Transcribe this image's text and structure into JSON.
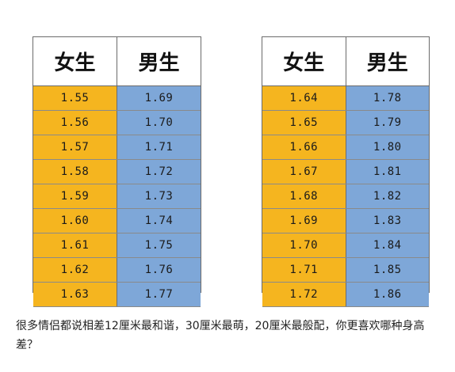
{
  "colors": {
    "female_column": "#f5b51f",
    "male_column": "#7ea7d8",
    "grid_lines": "#6b6b6b"
  },
  "left_table": {
    "headers": [
      "女生",
      "男生"
    ],
    "rows": [
      [
        "1.55",
        "1.69"
      ],
      [
        "1.56",
        "1.70"
      ],
      [
        "1.57",
        "1.71"
      ],
      [
        "1.58",
        "1.72"
      ],
      [
        "1.59",
        "1.73"
      ],
      [
        "1.60",
        "1.74"
      ],
      [
        "1.61",
        "1.75"
      ],
      [
        "1.62",
        "1.76"
      ],
      [
        "1.63",
        "1.77"
      ]
    ]
  },
  "right_table": {
    "headers": [
      "女生",
      "男生"
    ],
    "rows": [
      [
        "1.64",
        "1.78"
      ],
      [
        "1.65",
        "1.79"
      ],
      [
        "1.66",
        "1.80"
      ],
      [
        "1.67",
        "1.81"
      ],
      [
        "1.68",
        "1.82"
      ],
      [
        "1.69",
        "1.83"
      ],
      [
        "1.70",
        "1.84"
      ],
      [
        "1.71",
        "1.85"
      ],
      [
        "1.72",
        "1.86"
      ]
    ]
  },
  "caption": "很多情侣都说相差12厘米最和谐，30厘米最萌，20厘米最般配，你更喜欢哪种身高差？"
}
